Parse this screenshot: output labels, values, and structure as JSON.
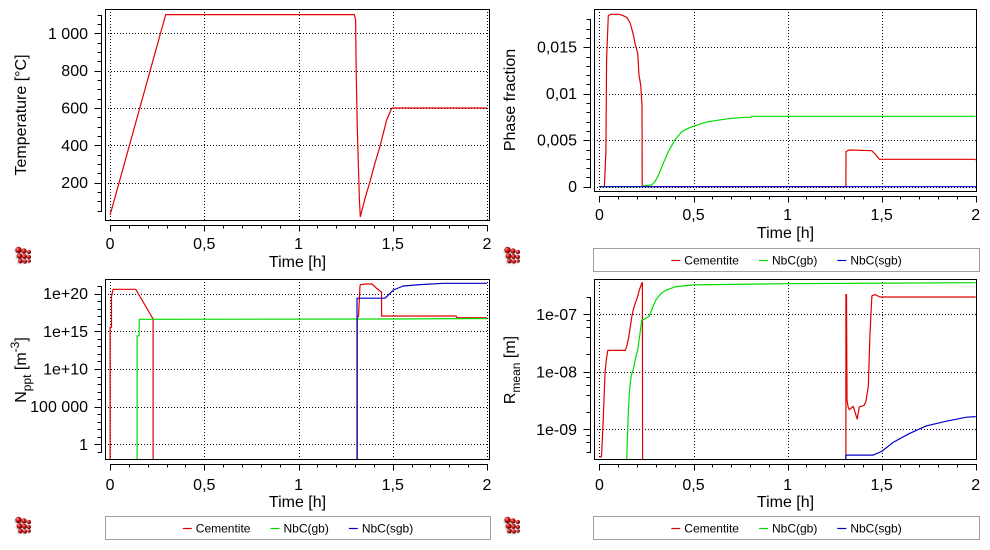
{
  "chart_data": [
    {
      "id": "temperature",
      "type": "line",
      "title": "",
      "xlabel": "Time [h]",
      "ylabel": "Temperature [°C]",
      "ylabel_parts": [
        {
          "t": "Temperature [°C]"
        }
      ],
      "xscale": "linear",
      "yscale": "linear",
      "xlim": [
        -0.027,
        2.016
      ],
      "ylim": [
        -5,
        1130
      ],
      "grid": true,
      "legend": null,
      "icon": "precipitate-cluster-icon",
      "x_ticks": {
        "major": [
          0,
          0.5,
          1,
          1.5,
          2
        ],
        "labels": [
          "0",
          "0,5",
          "1",
          "1,5",
          "2"
        ],
        "minor_step": 0.1
      },
      "y_ticks": {
        "major": [
          200,
          400,
          600,
          800,
          1000
        ],
        "labels": [
          "200",
          "400",
          "600",
          "800",
          "1 000"
        ],
        "minor_step": 50
      },
      "series": [
        {
          "name": "Temperature",
          "color": "#e00000",
          "points": [
            [
              0,
              27
            ],
            [
              0.295,
              1100
            ],
            [
              1.296,
              1100
            ],
            [
              1.303,
              1071
            ],
            [
              1.305,
              875
            ],
            [
              1.308,
              679
            ],
            [
              1.312,
              500
            ],
            [
              1.317,
              304
            ],
            [
              1.323,
              108
            ],
            [
              1.328,
              18
            ],
            [
              1.353,
              117
            ],
            [
              1.379,
              206
            ],
            [
              1.405,
              304
            ],
            [
              1.432,
              393
            ],
            [
              1.468,
              536
            ],
            [
              1.494,
              598
            ],
            [
              1.5,
              600
            ],
            [
              2,
              600
            ]
          ]
        }
      ]
    },
    {
      "id": "phase-fraction",
      "type": "line",
      "title": "",
      "xlabel": "Time [h]",
      "ylabel": "Phase fraction",
      "ylabel_parts": [
        {
          "t": "Phase fraction"
        }
      ],
      "xscale": "linear",
      "yscale": "linear",
      "xlim": [
        -0.0292,
        2.007
      ],
      "ylim": [
        -0.00057,
        0.01911
      ],
      "grid": true,
      "legend": "bottom",
      "icon": "precipitate-cluster-icon",
      "x_ticks": {
        "major": [
          0,
          0.5,
          1,
          1.5,
          2
        ],
        "labels": [
          "0",
          "0,5",
          "1",
          "1,5",
          "2"
        ],
        "minor_step": 0.1
      },
      "y_ticks": {
        "major": [
          0,
          0.005,
          0.01,
          0.015
        ],
        "labels": [
          "0",
          "0,005",
          "0,01",
          "0,015"
        ],
        "minor_step": 0.001
      },
      "series": [
        {
          "name": "Cementite",
          "color": "#e00000",
          "points": [
            [
              0,
              0
            ],
            [
              0.026,
              0
            ],
            [
              0.034,
              0.00376
            ],
            [
              0.038,
              0.0137
            ],
            [
              0.047,
              0.0184
            ],
            [
              0.06,
              0.01854
            ],
            [
              0.104,
              0.01854
            ],
            [
              0.125,
              0.0184
            ],
            [
              0.145,
              0.01821
            ],
            [
              0.162,
              0.01764
            ],
            [
              0.178,
              0.0165
            ],
            [
              0.189,
              0.01542
            ],
            [
              0.203,
              0.01434
            ],
            [
              0.21,
              0.012
            ],
            [
              0.219,
              0.01093
            ],
            [
              0.226,
              0.00878
            ],
            [
              0.227,
              0
            ],
            [
              1.31,
              0
            ],
            [
              1.3105,
              0.00376
            ],
            [
              1.318,
              0.00387
            ],
            [
              1.332,
              0.00395
            ],
            [
              1.447,
              0.00387
            ],
            [
              1.465,
              0.00352
            ],
            [
              1.488,
              0.00295
            ],
            [
              1.996,
              0.00295
            ],
            [
              2,
              0.00287
            ]
          ]
        },
        {
          "name": "NbC(gb)",
          "color": "#00dc00",
          "points": [
            [
              0,
              0
            ],
            [
              0.224,
              0
            ],
            [
              0.235,
              0.0001
            ],
            [
              0.277,
              0.00018
            ],
            [
              0.295,
              0.00054
            ],
            [
              0.313,
              0.00126
            ],
            [
              0.339,
              0.00252
            ],
            [
              0.366,
              0.00376
            ],
            [
              0.401,
              0.00502
            ],
            [
              0.437,
              0.00591
            ],
            [
              0.472,
              0.00628
            ],
            [
              0.508,
              0.00656
            ],
            [
              0.578,
              0.00699
            ],
            [
              0.685,
              0.00731
            ],
            [
              0.774,
              0.00746
            ],
            [
              0.804,
              0.00746
            ],
            [
              0.81,
              0.00757
            ],
            [
              2,
              0.00757
            ]
          ]
        },
        {
          "name": "NbC(sgb)",
          "color": "#0000c8",
          "points": [
            [
              0,
              0
            ],
            [
              2,
              0
            ]
          ]
        }
      ]
    },
    {
      "id": "number-density",
      "type": "line",
      "title": "",
      "xlabel": "Time [h]",
      "ylabel": "Nppt [m-3]",
      "ylabel_parts": [
        {
          "t": "N"
        },
        {
          "t": "ppt",
          "sub": true
        },
        {
          "t": " [m"
        },
        {
          "t": "-3",
          "sup": true
        },
        {
          "t": "]"
        }
      ],
      "xscale": "linear",
      "yscale": "log",
      "xlim": [
        -0.027,
        2.016
      ],
      "ylim": [
        0.0083,
        8.9e+21
      ],
      "grid": true,
      "legend": "bottom",
      "icon": "precipitate-cluster-icon",
      "x_ticks": {
        "major": [
          0,
          0.5,
          1,
          1.5,
          2
        ],
        "labels": [
          "0",
          "0,5",
          "1",
          "1,5",
          "2"
        ],
        "minor_step": 0.1
      },
      "y_ticks": {
        "major": [
          1,
          100000.0,
          10000000000.0,
          1000000000000000.0,
          1e+20
        ],
        "labels": [
          "1",
          "100 000",
          "1e+10",
          "1e+15",
          "1e+20"
        ],
        "minor_multipliers": [
          1
        ]
      },
      "series": [
        {
          "name": "Cementite",
          "color": "#e00000",
          "points": [
            [
              0,
              0.001
            ],
            [
              0,
              3500000000000000.0
            ],
            [
              0.0074,
              3500000000000000.0
            ],
            [
              0.0074,
              4e+19
            ],
            [
              0.016,
              3.8e+20
            ],
            [
              0.1365,
              3.8e+20
            ],
            [
              0.228,
              4.4e+16
            ],
            [
              0.2285,
              0.001
            ],
            [
              1.312,
              0.001
            ],
            [
              1.312,
              8.9e+16
            ],
            [
              1.318,
              8.9e+16
            ],
            [
              1.326,
              1.15e+21
            ],
            [
              1.33,
              1.6e+21
            ],
            [
              1.36,
              1.95e+21
            ],
            [
              1.39,
              1.95e+21
            ],
            [
              1.415,
              5e+20
            ],
            [
              1.44,
              1.6e+20
            ],
            [
              1.441,
              1.1e+17
            ],
            [
              1.836,
              1.1e+17
            ],
            [
              1.84,
              6.5e+16
            ],
            [
              2,
              6.5e+16
            ]
          ]
        },
        {
          "name": "NbC(gb)",
          "color": "#00dc00",
          "points": [
            [
              0.1434,
              0.001
            ],
            [
              0.1434,
              260000000000000.0
            ],
            [
              0.154,
              260000000000000.0
            ],
            [
              0.155,
              4e+16
            ],
            [
              1.5,
              4.3e+16
            ],
            [
              2,
              5e+16
            ]
          ]
        },
        {
          "name": "NbC(sgb)",
          "color": "#0000c8",
          "points": [
            [
              1.31,
              0.001
            ],
            [
              1.31,
              2.5e+19
            ],
            [
              1.459,
              2.5e+19
            ],
            [
              1.48,
              8e+19
            ],
            [
              1.503,
              3.1e+20
            ],
            [
              1.556,
              1.05e+21
            ],
            [
              1.645,
              1.6e+21
            ],
            [
              1.77,
              2.4e+21
            ],
            [
              2,
              2.4e+21
            ]
          ]
        }
      ]
    },
    {
      "id": "mean-radius",
      "type": "line",
      "title": "",
      "xlabel": "Time [h]",
      "ylabel": "Rmean [m]",
      "ylabel_parts": [
        {
          "t": "R"
        },
        {
          "t": "mean",
          "sub": true
        },
        {
          "t": " [m]"
        }
      ],
      "xscale": "linear",
      "yscale": "log",
      "xlim": [
        -0.0292,
        2.007
      ],
      "ylim": [
        2.92e-10,
        4.11e-07
      ],
      "grid": true,
      "legend": "bottom",
      "icon": "precipitate-cluster-icon",
      "x_ticks": {
        "major": [
          0,
          0.5,
          1,
          1.5,
          2
        ],
        "labels": [
          "0",
          "0,5",
          "1",
          "1,5",
          "2"
        ],
        "minor_step": 0.1
      },
      "y_ticks": {
        "major": [
          1e-09,
          1e-08,
          1e-07
        ],
        "labels": [
          "1e-09",
          "1e-08",
          "1e-07"
        ],
        "minor_multipliers": [
          2,
          4,
          6,
          8
        ]
      },
      "series": [
        {
          "name": "Cementite",
          "color": "#e00000",
          "points": [
            [
              0,
              3.3e-10
            ],
            [
              0.01,
              3.3e-10
            ],
            [
              0.012,
              3.9e-10
            ],
            [
              0.02,
              1.6e-09
            ],
            [
              0.03,
              1e-08
            ],
            [
              0.036,
              1.6e-08
            ],
            [
              0.044,
              2.35e-08
            ],
            [
              0.137,
              2.35e-08
            ],
            [
              0.145,
              2.8e-08
            ],
            [
              0.154,
              3.8e-08
            ],
            [
              0.162,
              5.6e-08
            ],
            [
              0.172,
              9.1e-08
            ],
            [
              0.18,
              1.2e-07
            ],
            [
              0.19,
              1.55e-07
            ],
            [
              0.2,
              1.9e-07
            ],
            [
              0.211,
              2.6e-07
            ],
            [
              0.225,
              3.5e-07
            ],
            [
              0.228,
              3.55e-07
            ],
            [
              0.229,
              1e-10
            ],
            [
              1.31,
              1e-10
            ],
            [
              1.31,
              2.2e-07
            ],
            [
              1.313,
              2.2e-07
            ],
            [
              1.316,
              3.2e-09
            ],
            [
              1.322,
              2.4e-09
            ],
            [
              1.328,
              2.2e-09
            ],
            [
              1.349,
              2.5e-09
            ],
            [
              1.37,
              1.5e-09
            ],
            [
              1.381,
              2.45e-09
            ],
            [
              1.406,
              2.6e-09
            ],
            [
              1.416,
              3e-09
            ],
            [
              1.429,
              5.5e-09
            ],
            [
              1.438,
              4.7e-08
            ],
            [
              1.448,
              2.1e-07
            ],
            [
              1.464,
              2.2e-07
            ],
            [
              1.491,
              2e-07
            ],
            [
              2,
              2e-07
            ]
          ]
        },
        {
          "name": "NbC(gb)",
          "color": "#00dc00",
          "points": [
            [
              0.145,
              1e-10
            ],
            [
              0.145,
              3.2e-10
            ],
            [
              0.148,
              6.3e-10
            ],
            [
              0.15,
              1e-09
            ],
            [
              0.153,
              1.9e-09
            ],
            [
              0.158,
              4e-09
            ],
            [
              0.163,
              6.3e-09
            ],
            [
              0.17,
              8.9e-09
            ],
            [
              0.18,
              1.1e-08
            ],
            [
              0.19,
              1.6e-08
            ],
            [
              0.203,
              2.4e-08
            ],
            [
              0.215,
              4.5e-08
            ],
            [
              0.225,
              7.9e-08
            ],
            [
              0.234,
              8.1e-08
            ],
            [
              0.264,
              9.1e-08
            ],
            [
              0.28,
              1.26e-07
            ],
            [
              0.3,
              1.78e-07
            ],
            [
              0.314,
              2.05e-07
            ],
            [
              0.33,
              2.35e-07
            ],
            [
              0.349,
              2.57e-07
            ],
            [
              0.4,
              3e-07
            ],
            [
              0.5,
              3.24e-07
            ],
            [
              1,
              3.4e-07
            ],
            [
              2,
              3.55e-07
            ]
          ]
        },
        {
          "name": "NbC(sgb)",
          "color": "#0000c8",
          "points": [
            [
              1.31,
              1e-10
            ],
            [
              1.31,
              3.55e-10
            ],
            [
              1.455,
              3.55e-10
            ],
            [
              1.5,
              4.1e-10
            ],
            [
              1.561,
              5.9e-10
            ],
            [
              1.65,
              8.5e-10
            ],
            [
              1.739,
              1.15e-09
            ],
            [
              1.845,
              1.38e-09
            ],
            [
              1.951,
              1.62e-09
            ],
            [
              2,
              1.66e-09
            ]
          ]
        }
      ]
    }
  ]
}
